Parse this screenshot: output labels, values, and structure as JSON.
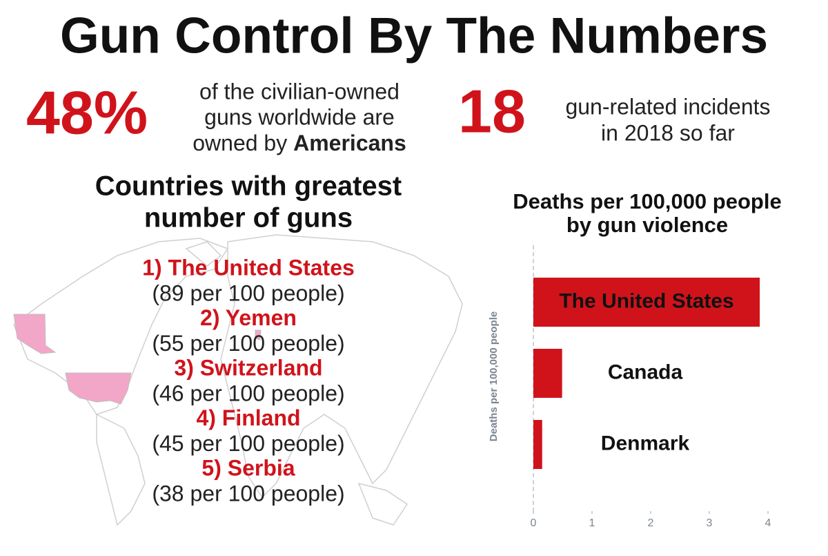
{
  "header": {
    "title": "Gun Control By The Numbers"
  },
  "stats": [
    {
      "figure": "48%",
      "lines": [
        "of the civilian-owned",
        "guns worldwide are"
      ],
      "last_line": "owned by",
      "emphasis": "Americans"
    },
    {
      "figure": "18",
      "lines": [
        "gun-related incidents",
        "in 2018 so far"
      ]
    }
  ],
  "ranking": {
    "title_lines": [
      "Countries with greatest",
      "number of guns"
    ],
    "items": [
      {
        "rank": "1) The United States",
        "detail": "(89 per 100 people)"
      },
      {
        "rank": "2) Yemen",
        "detail": "(55 per 100 people)"
      },
      {
        "rank": "3) Switzerland",
        "detail": "(46 per 100 people)"
      },
      {
        "rank": "4) Finland",
        "detail": "(45 per 100 people)"
      },
      {
        "rank": "5) Serbia",
        "detail": "(38 per 100 people)"
      }
    ]
  },
  "chart_data": {
    "type": "hbar",
    "title": [
      "Deaths per 100,000 people",
      "by gun violence"
    ],
    "y_label": "Deaths per 100,000 people",
    "categories": [
      "The United States",
      "Canada",
      "Denmark"
    ],
    "values": [
      3.86,
      0.49,
      0.15
    ],
    "color": "#d0131b",
    "xlim": [
      0,
      4.9
    ],
    "xticks": [
      0,
      1,
      2,
      3,
      4
    ]
  }
}
